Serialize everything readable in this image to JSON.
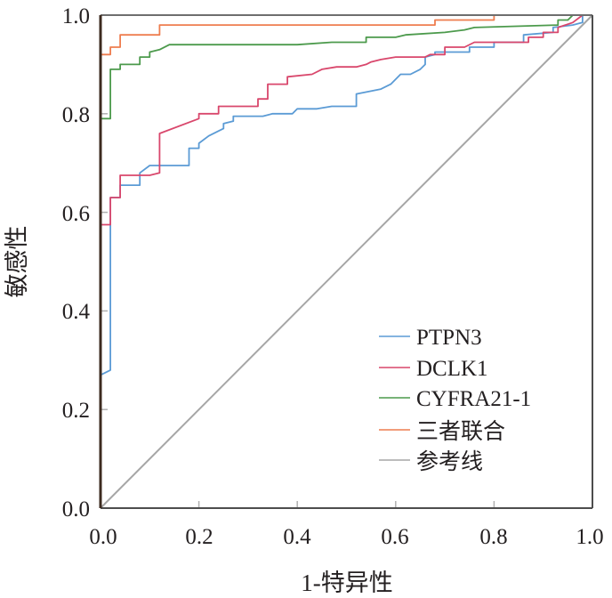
{
  "chart_data": {
    "type": "line",
    "title": "",
    "xlabel": "1-特异性",
    "ylabel": "敏感性",
    "xlim": [
      0,
      1
    ],
    "ylim": [
      0,
      1
    ],
    "xticks": [
      "0.0",
      "0.2",
      "0.4",
      "0.6",
      "0.8",
      "1.0"
    ],
    "yticks": [
      "0.0",
      "0.2",
      "0.4",
      "0.6",
      "0.8",
      "1.0"
    ],
    "xtick_values": [
      0,
      0.2,
      0.4,
      0.6,
      0.8,
      1.0
    ],
    "ytick_values": [
      0,
      0.2,
      0.4,
      0.6,
      0.8,
      1.0
    ],
    "grid": false,
    "legend_position": "bottom-right",
    "series": [
      {
        "name": "PTPN3",
        "color": "#5b9bd5",
        "x": [
          0,
          0,
          0.02,
          0.02,
          0.04,
          0.04,
          0.08,
          0.08,
          0.1,
          0.17,
          0.18,
          0.18,
          0.2,
          0.2,
          0.22,
          0.24,
          0.25,
          0.25,
          0.27,
          0.27,
          0.33,
          0.35,
          0.39,
          0.4,
          0.44,
          0.47,
          0.52,
          0.52,
          0.57,
          0.59,
          0.61,
          0.63,
          0.65,
          0.66,
          0.66,
          0.68,
          0.68,
          0.73,
          0.75,
          0.75,
          0.8,
          0.8,
          0.86,
          0.86,
          0.92,
          0.92,
          0.96,
          0.98,
          0.98,
          1.0
        ],
        "y": [
          0,
          0.27,
          0.28,
          0.63,
          0.63,
          0.655,
          0.655,
          0.68,
          0.695,
          0.695,
          0.695,
          0.73,
          0.73,
          0.74,
          0.755,
          0.765,
          0.77,
          0.78,
          0.785,
          0.795,
          0.795,
          0.8,
          0.8,
          0.81,
          0.81,
          0.815,
          0.815,
          0.84,
          0.85,
          0.86,
          0.88,
          0.88,
          0.89,
          0.9,
          0.915,
          0.92,
          0.925,
          0.925,
          0.925,
          0.935,
          0.935,
          0.945,
          0.945,
          0.96,
          0.965,
          0.975,
          0.98,
          0.985,
          1.0,
          1.0
        ]
      },
      {
        "name": "DCLK1",
        "color": "#d9476c",
        "x": [
          0,
          0,
          0.02,
          0.02,
          0.04,
          0.04,
          0.1,
          0.12,
          0.12,
          0.2,
          0.2,
          0.24,
          0.24,
          0.32,
          0.32,
          0.34,
          0.34,
          0.38,
          0.38,
          0.43,
          0.45,
          0.48,
          0.52,
          0.54,
          0.55,
          0.57,
          0.6,
          0.65,
          0.66,
          0.67,
          0.7,
          0.7,
          0.74,
          0.76,
          0.8,
          0.87,
          0.87,
          0.9,
          0.9,
          0.93,
          0.93,
          0.96,
          0.98,
          1.0
        ],
        "y": [
          0,
          0.575,
          0.575,
          0.63,
          0.63,
          0.675,
          0.675,
          0.68,
          0.76,
          0.79,
          0.8,
          0.8,
          0.815,
          0.815,
          0.83,
          0.83,
          0.86,
          0.86,
          0.875,
          0.88,
          0.89,
          0.895,
          0.895,
          0.9,
          0.905,
          0.91,
          0.915,
          0.915,
          0.915,
          0.92,
          0.92,
          0.935,
          0.935,
          0.945,
          0.945,
          0.945,
          0.955,
          0.955,
          0.965,
          0.965,
          0.975,
          0.985,
          1.0,
          1.0
        ]
      },
      {
        "name": "CYFRA21-1",
        "color": "#4c9a4c",
        "x": [
          0,
          0,
          0.02,
          0.02,
          0.04,
          0.04,
          0.08,
          0.08,
          0.1,
          0.1,
          0.12,
          0.14,
          0.4,
          0.47,
          0.52,
          0.54,
          0.54,
          0.6,
          0.62,
          0.7,
          0.74,
          0.76,
          0.93,
          0.93,
          0.95,
          0.96,
          1.0
        ],
        "y": [
          0,
          0.79,
          0.79,
          0.89,
          0.89,
          0.9,
          0.9,
          0.915,
          0.915,
          0.925,
          0.93,
          0.94,
          0.94,
          0.945,
          0.945,
          0.945,
          0.955,
          0.955,
          0.96,
          0.965,
          0.97,
          0.975,
          0.98,
          0.99,
          0.99,
          1.0,
          1.0
        ]
      },
      {
        "name": "三者联合",
        "color": "#ee7d4f",
        "x": [
          0,
          0,
          0.02,
          0.02,
          0.04,
          0.04,
          0.12,
          0.12,
          0.68,
          0.68,
          0.8,
          0.8,
          1.0
        ],
        "y": [
          0,
          0.92,
          0.92,
          0.935,
          0.935,
          0.96,
          0.96,
          0.98,
          0.98,
          0.99,
          0.99,
          1.0,
          1.0
        ]
      },
      {
        "name": "参考线",
        "color": "#a6a6a6",
        "x": [
          0,
          1
        ],
        "y": [
          0,
          1
        ]
      }
    ]
  },
  "styling": {
    "axis_color": "#4d4d4d",
    "left_axis_color": "#3d2b20",
    "top_axis_color": "#6e6e6e",
    "text_color": "#231f20",
    "background": "#ffffff"
  }
}
